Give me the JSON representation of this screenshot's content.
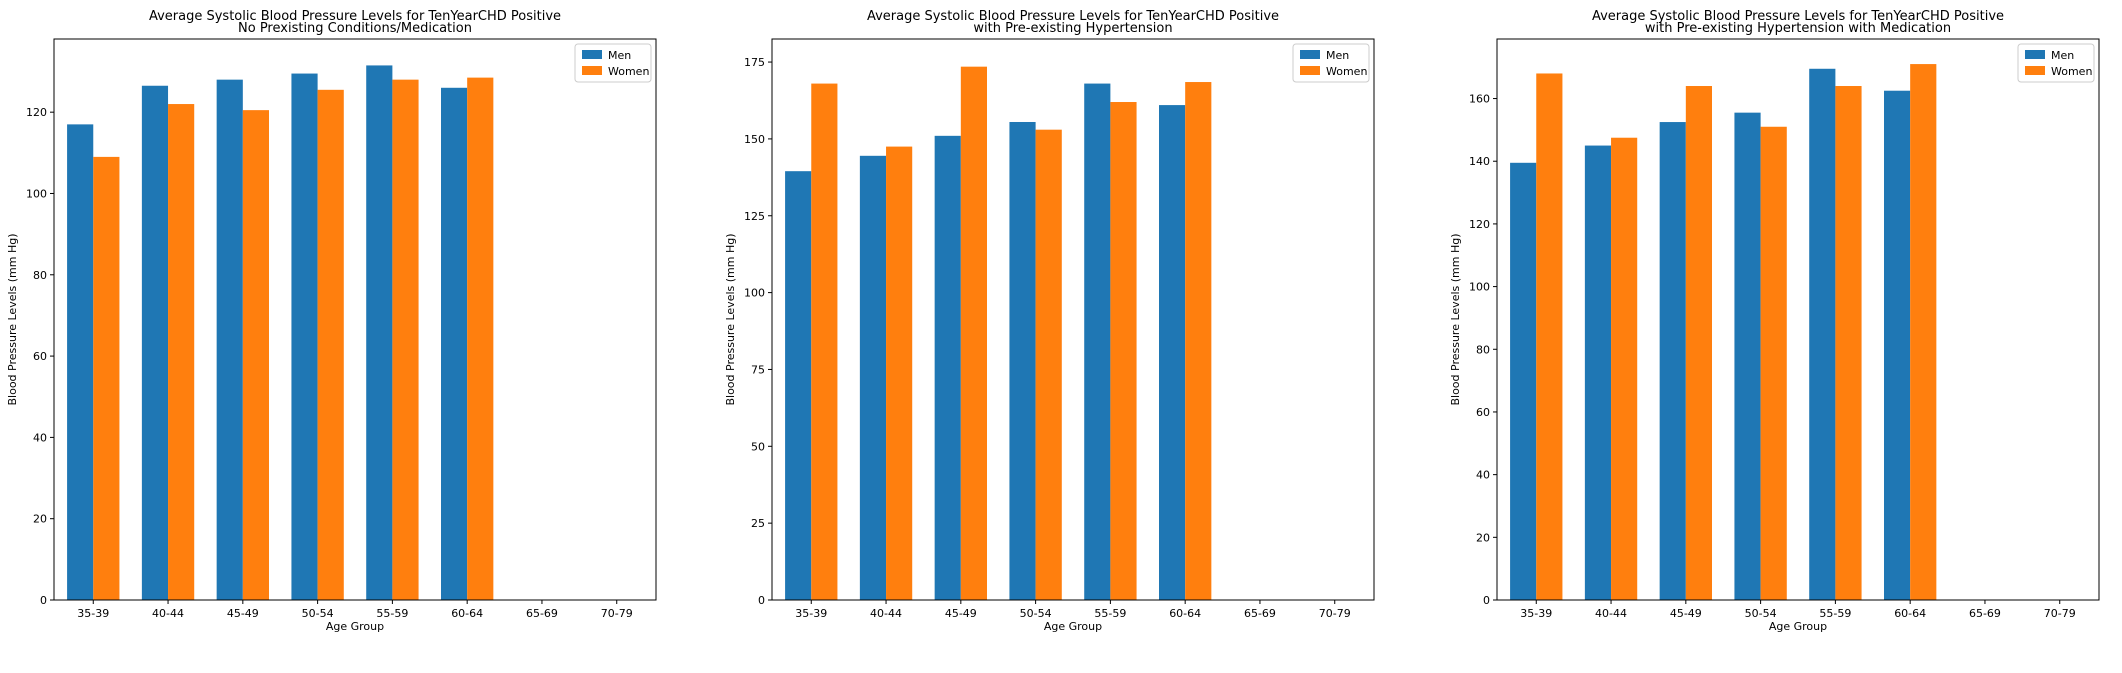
{
  "colors": {
    "men": "#1f77b4",
    "women": "#ff7f0e",
    "axis": "#000000"
  },
  "chart_data": [
    {
      "type": "bar",
      "title": "Average Systolic Blood Pressure Levels for TenYearCHD Positive",
      "subtitle": "No Prexisting Conditions/Medication",
      "xlabel": "Age Group",
      "ylabel": "Blood Pressure Levels (mm Hg)",
      "categories": [
        "35-39",
        "40-44",
        "45-49",
        "50-54",
        "55-59",
        "60-64",
        "65-69",
        "70-79"
      ],
      "yticks": [
        0,
        20,
        40,
        60,
        80,
        100,
        120
      ],
      "ylim": [
        0,
        138
      ],
      "legend": "top-right",
      "series": [
        {
          "name": "Men",
          "values": [
            117,
            126.5,
            128,
            129.5,
            131.5,
            126,
            null,
            null
          ]
        },
        {
          "name": "Women",
          "values": [
            109,
            122,
            120.5,
            125.5,
            128,
            128.5,
            null,
            null
          ]
        }
      ]
    },
    {
      "type": "bar",
      "title": "Average Systolic Blood Pressure Levels for TenYearCHD Positive",
      "subtitle": "with Pre-existing Hypertension",
      "xlabel": "Age Group",
      "ylabel": "Blood Pressure Levels (mm Hg)",
      "categories": [
        "35-39",
        "40-44",
        "45-49",
        "50-54",
        "55-59",
        "60-64",
        "65-69",
        "70-79"
      ],
      "yticks": [
        0,
        25,
        50,
        75,
        100,
        125,
        150,
        175
      ],
      "ylim": [
        0,
        182.5
      ],
      "legend": "top-right",
      "series": [
        {
          "name": "Men",
          "values": [
            139.5,
            144.5,
            151,
            155.5,
            168,
            161,
            null,
            null
          ]
        },
        {
          "name": "Women",
          "values": [
            168,
            147.5,
            173.5,
            153,
            162,
            168.5,
            null,
            null
          ]
        }
      ]
    },
    {
      "type": "bar",
      "title": "Average Systolic Blood Pressure Levels for TenYearCHD Positive",
      "subtitle": "with Pre-existing Hypertension with Medication",
      "xlabel": "Age Group",
      "ylabel": "Blood Pressure Levels (mm Hg)",
      "categories": [
        "35-39",
        "40-44",
        "45-49",
        "50-54",
        "55-59",
        "60-64",
        "65-69",
        "70-79"
      ],
      "yticks": [
        0,
        20,
        40,
        60,
        80,
        100,
        120,
        140,
        160
      ],
      "ylim": [
        0,
        179
      ],
      "legend": "top-right",
      "series": [
        {
          "name": "Men",
          "values": [
            139.5,
            145,
            152.5,
            155.5,
            169.5,
            162.5,
            null,
            null
          ]
        },
        {
          "name": "Women",
          "values": [
            168,
            147.5,
            164,
            151,
            164,
            171,
            null,
            null
          ]
        }
      ]
    }
  ]
}
